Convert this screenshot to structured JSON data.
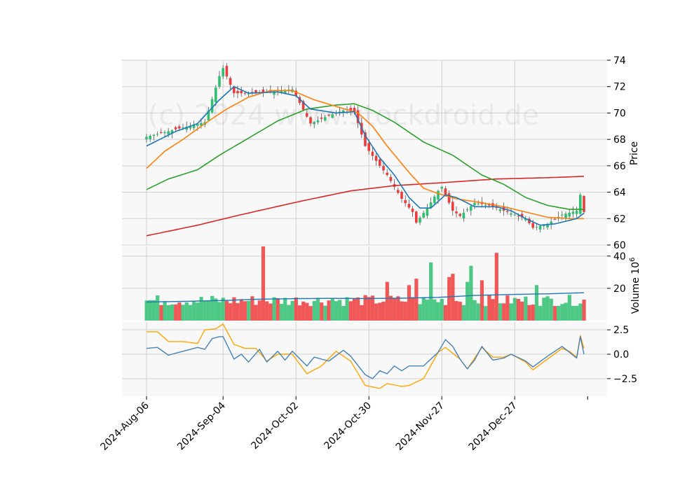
{
  "watermark": "(c) 2024 www.stockdroid.de",
  "colors": {
    "up": "#2fbf71",
    "down": "#ef3b3b",
    "ma_fast": "#1f77b4",
    "ma_mid": "#ff7f0e",
    "ma_slow": "#2ca02c",
    "ma_long": "#d62728",
    "vol_avg": "#1f77b4",
    "osc_a": "#4682b4",
    "osc_b": "#ffa500",
    "panel_bg": "#f8f8f8",
    "grid": "#d0d0d0"
  },
  "chart_data": {
    "type": "candlestick",
    "x_tick_labels": [
      "2024-Aug-06",
      "2024-Sep-04",
      "2024-Oct-02",
      "2024-Oct-30",
      "2024-Nov-27",
      "2024-Dec-27"
    ],
    "x_tick_index": [
      0,
      21,
      41,
      61,
      81,
      101
    ],
    "n_bars": 121,
    "price": {
      "ylabel": "Price",
      "ylim": [
        60,
        74
      ],
      "yticks": [
        60,
        62,
        64,
        66,
        68,
        70,
        72,
        74
      ],
      "close_knots": [
        [
          0,
          68.2
        ],
        [
          10,
          68.9
        ],
        [
          16,
          69.3
        ],
        [
          20,
          72.8
        ],
        [
          21,
          73.4
        ],
        [
          24,
          71.5
        ],
        [
          30,
          71.5
        ],
        [
          40,
          71.8
        ],
        [
          45,
          69.2
        ],
        [
          50,
          69.8
        ],
        [
          55,
          70.3
        ],
        [
          57,
          70.1
        ],
        [
          60,
          67.5
        ],
        [
          64,
          66.0
        ],
        [
          66,
          65.3
        ],
        [
          70,
          63.5
        ],
        [
          73,
          62.5
        ],
        [
          74,
          61.7
        ],
        [
          77,
          62.8
        ],
        [
          80,
          64.1
        ],
        [
          81,
          64.4
        ],
        [
          84,
          62.6
        ],
        [
          86,
          62.2
        ],
        [
          90,
          63.2
        ],
        [
          94,
          63.0
        ],
        [
          98,
          62.6
        ],
        [
          104,
          62.0
        ],
        [
          106,
          61.3
        ],
        [
          110,
          61.6
        ],
        [
          114,
          62.3
        ],
        [
          118,
          62.6
        ],
        [
          119,
          63.8
        ],
        [
          120,
          62.5
        ]
      ],
      "ma_fast_knots": [
        [
          0,
          67.5
        ],
        [
          8,
          68.6
        ],
        [
          14,
          69.2
        ],
        [
          20,
          71.0
        ],
        [
          24,
          72.0
        ],
        [
          28,
          71.5
        ],
        [
          36,
          71.6
        ],
        [
          41,
          71.3
        ],
        [
          45,
          70.3
        ],
        [
          52,
          70.0
        ],
        [
          57,
          70.1
        ],
        [
          60,
          68.3
        ],
        [
          64,
          66.6
        ],
        [
          68,
          65.3
        ],
        [
          72,
          63.6
        ],
        [
          75,
          62.8
        ],
        [
          78,
          62.8
        ],
        [
          82,
          63.8
        ],
        [
          85,
          63.6
        ],
        [
          90,
          62.9
        ],
        [
          96,
          62.9
        ],
        [
          100,
          62.6
        ],
        [
          104,
          62.0
        ],
        [
          108,
          61.5
        ],
        [
          112,
          61.6
        ],
        [
          118,
          62.0
        ],
        [
          120,
          62.4
        ]
      ],
      "ma_mid_knots": [
        [
          0,
          65.8
        ],
        [
          5,
          67.1
        ],
        [
          10,
          68.0
        ],
        [
          16,
          69.2
        ],
        [
          22,
          70.3
        ],
        [
          28,
          71.2
        ],
        [
          34,
          71.7
        ],
        [
          40,
          71.7
        ],
        [
          46,
          71.0
        ],
        [
          52,
          70.5
        ],
        [
          58,
          70.0
        ],
        [
          62,
          69.0
        ],
        [
          66,
          67.5
        ],
        [
          72,
          65.5
        ],
        [
          76,
          64.3
        ],
        [
          80,
          63.9
        ],
        [
          85,
          63.5
        ],
        [
          92,
          63.2
        ],
        [
          98,
          62.9
        ],
        [
          104,
          62.5
        ],
        [
          110,
          62.1
        ],
        [
          116,
          62.0
        ],
        [
          120,
          62.0
        ]
      ],
      "ma_slow_knots": [
        [
          0,
          64.2
        ],
        [
          6,
          65.0
        ],
        [
          14,
          65.7
        ],
        [
          20,
          66.8
        ],
        [
          28,
          68.1
        ],
        [
          36,
          69.4
        ],
        [
          44,
          70.3
        ],
        [
          52,
          70.6
        ],
        [
          57,
          70.7
        ],
        [
          62,
          70.2
        ],
        [
          68,
          69.3
        ],
        [
          76,
          67.8
        ],
        [
          84,
          66.8
        ],
        [
          92,
          65.3
        ],
        [
          98,
          64.6
        ],
        [
          104,
          63.6
        ],
        [
          110,
          63.0
        ],
        [
          116,
          62.7
        ],
        [
          120,
          62.7
        ]
      ],
      "ma_long_knots": [
        [
          0,
          60.7
        ],
        [
          14,
          61.5
        ],
        [
          26,
          62.3
        ],
        [
          42,
          63.3
        ],
        [
          56,
          64.1
        ],
        [
          68,
          64.5
        ],
        [
          80,
          64.7
        ],
        [
          96,
          65.0
        ],
        [
          110,
          65.1
        ],
        [
          120,
          65.2
        ]
      ]
    },
    "volume": {
      "ylabel": "Volume  10^6",
      "ylim": [
        0,
        46
      ],
      "yticks": [
        20,
        40
      ],
      "spikes": [
        [
          32,
          48
        ],
        [
          51,
          14
        ],
        [
          66,
          24
        ],
        [
          72,
          22
        ],
        [
          74,
          26
        ],
        [
          78,
          36
        ],
        [
          83,
          27
        ],
        [
          84,
          29
        ],
        [
          88,
          24
        ],
        [
          89,
          34
        ],
        [
          92,
          25
        ],
        [
          96,
          42
        ],
        [
          107,
          22
        ]
      ],
      "avg_knots": [
        [
          0,
          11.5
        ],
        [
          20,
          12.4
        ],
        [
          30,
          13.2
        ],
        [
          40,
          13.6
        ],
        [
          50,
          13.8
        ],
        [
          60,
          13.7
        ],
        [
          70,
          13.9
        ],
        [
          80,
          14.4
        ],
        [
          90,
          15.6
        ],
        [
          100,
          16.2
        ],
        [
          110,
          16.6
        ],
        [
          120,
          17.3
        ]
      ]
    },
    "oscillator": {
      "ylim": [
        -4.3,
        3.3
      ],
      "yticks": [
        2.5,
        0.0,
        -2.5
      ],
      "ytick_labels": [
        "2.5",
        "0.0",
        "−2.5"
      ],
      "line_a_knots": [
        [
          0,
          0.6
        ],
        [
          3,
          0.7
        ],
        [
          6,
          -0.1
        ],
        [
          10,
          0.3
        ],
        [
          14,
          0.7
        ],
        [
          16,
          0.5
        ],
        [
          18,
          1.6
        ],
        [
          20,
          1.8
        ],
        [
          21,
          1.8
        ],
        [
          24,
          -0.5
        ],
        [
          26,
          0.0
        ],
        [
          28,
          -0.8
        ],
        [
          31,
          0.5
        ],
        [
          33,
          -0.8
        ],
        [
          36,
          0.3
        ],
        [
          38,
          -0.6
        ],
        [
          40,
          0.3
        ],
        [
          44,
          -1.2
        ],
        [
          46,
          -0.3
        ],
        [
          50,
          -0.7
        ],
        [
          54,
          0.4
        ],
        [
          56,
          -0.2
        ],
        [
          60,
          -2.1
        ],
        [
          62,
          -2.5
        ],
        [
          64,
          -1.7
        ],
        [
          66,
          -2.0
        ],
        [
          68,
          -1.2
        ],
        [
          70,
          -1.7
        ],
        [
          72,
          -1.2
        ],
        [
          76,
          -1.2
        ],
        [
          80,
          0.2
        ],
        [
          82,
          1.5
        ],
        [
          84,
          0.8
        ],
        [
          86,
          -0.5
        ],
        [
          88,
          -1.5
        ],
        [
          90,
          -0.6
        ],
        [
          92,
          0.8
        ],
        [
          95,
          -0.6
        ],
        [
          98,
          -0.4
        ],
        [
          100,
          0.0
        ],
        [
          104,
          -0.7
        ],
        [
          106,
          -1.3
        ],
        [
          110,
          -0.2
        ],
        [
          114,
          0.8
        ],
        [
          116,
          0.2
        ],
        [
          118,
          -0.4
        ],
        [
          119,
          1.8
        ],
        [
          120,
          0.0
        ]
      ],
      "line_b_knots": [
        [
          0,
          2.3
        ],
        [
          3,
          2.3
        ],
        [
          6,
          1.3
        ],
        [
          10,
          1.3
        ],
        [
          14,
          1.1
        ],
        [
          16,
          2.5
        ],
        [
          19,
          2.6
        ],
        [
          21,
          3.1
        ],
        [
          24,
          1.0
        ],
        [
          27,
          0.6
        ],
        [
          30,
          0.6
        ],
        [
          33,
          -0.7
        ],
        [
          36,
          0.0
        ],
        [
          40,
          0.0
        ],
        [
          44,
          -2.0
        ],
        [
          48,
          -1.2
        ],
        [
          52,
          0.3
        ],
        [
          56,
          -0.7
        ],
        [
          60,
          -3.2
        ],
        [
          64,
          -3.5
        ],
        [
          66,
          -3.0
        ],
        [
          70,
          -3.3
        ],
        [
          72,
          -3.2
        ],
        [
          76,
          -2.5
        ],
        [
          80,
          0.2
        ],
        [
          82,
          0.7
        ],
        [
          86,
          -0.5
        ],
        [
          88,
          -1.5
        ],
        [
          92,
          0.7
        ],
        [
          95,
          -0.3
        ],
        [
          98,
          -0.3
        ],
        [
          100,
          0.0
        ],
        [
          104,
          -0.8
        ],
        [
          106,
          -1.6
        ],
        [
          110,
          -0.5
        ],
        [
          114,
          0.6
        ],
        [
          116,
          0.3
        ],
        [
          118,
          -0.3
        ],
        [
          119,
          1.9
        ],
        [
          120,
          0.6
        ]
      ]
    }
  }
}
